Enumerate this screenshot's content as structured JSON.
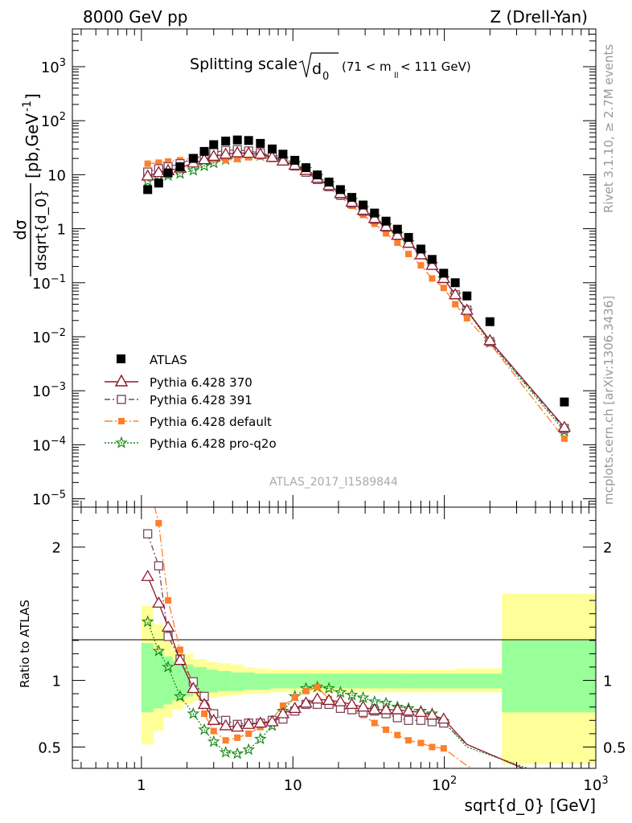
{
  "header": {
    "left": "8000 GeV pp",
    "right": "Z (Drell-Yan)"
  },
  "title": {
    "main": "Splitting scale",
    "symbol": "d",
    "symbol_sub": "0",
    "range_pre": "(71 < m",
    "range_sub": "ll",
    "range_post": " < 111 GeV)"
  },
  "ylabel": {
    "frac_num": "dσ",
    "frac_den": "dsqrt{d_0}",
    "units": "[pb,GeV",
    "units_sup": "-1",
    "units_close": "]"
  },
  "ratio_ylabel": "Ratio to ATLAS",
  "xlabel": "sqrt{d_0} [GeV]",
  "side_labels": {
    "rivet": "Rivet 3.1.10, ≥ 2.7M events",
    "mcplots": "mcplots.cern.ch [arXiv:1306.3436]"
  },
  "analysis_id": "ATLAS_2017_I1589844",
  "colors": {
    "atlas": "#000000",
    "p370": "#8b1a2e",
    "p391": "#7a4a5e",
    "pdefault": "#ff7f2a",
    "pq2o": "#1a8a1a",
    "band_inner": "#99ff99",
    "band_outer": "#ffff99"
  },
  "chart_data": {
    "type": "scatter",
    "x_scale": "log",
    "y_scale": "log",
    "xlim": [
      0.35,
      1000
    ],
    "ylim": [
      7e-06,
      5000
    ],
    "ratio_ylim": [
      0.34,
      2.3
    ],
    "xticks": [
      {
        "v": 1,
        "t": "1"
      },
      {
        "v": 10,
        "t": "10"
      },
      {
        "v": 100,
        "b": "10",
        "s": "2"
      },
      {
        "v": 1000,
        "b": "10",
        "s": "3"
      }
    ],
    "yticks": [
      {
        "v": 1e-05,
        "b": "10",
        "s": "−5"
      },
      {
        "v": 0.0001,
        "b": "10",
        "s": "−4"
      },
      {
        "v": 0.001,
        "b": "10",
        "s": "−3"
      },
      {
        "v": 0.01,
        "b": "10",
        "s": "−2"
      },
      {
        "v": 0.1,
        "b": "10",
        "s": "−1"
      },
      {
        "v": 1,
        "t": "1"
      },
      {
        "v": 10,
        "t": "10"
      },
      {
        "v": 100,
        "b": "10",
        "s": "2"
      },
      {
        "v": 1000,
        "b": "10",
        "s": "3"
      }
    ],
    "ratio_yticks": [
      {
        "v": 0.5,
        "t": "0.5"
      },
      {
        "v": 1,
        "t": "1"
      },
      {
        "v": 2,
        "t": "2"
      }
    ],
    "x": [
      1.1,
      1.3,
      1.5,
      1.8,
      2.2,
      2.6,
      3.0,
      3.6,
      4.3,
      5.1,
      6.1,
      7.3,
      8.6,
      10.3,
      12.2,
      14.5,
      17.3,
      20.6,
      24.5,
      29.1,
      34.6,
      41.2,
      49,
      58,
      70,
      83,
      99,
      118,
      141,
      200,
      620
    ],
    "series": [
      {
        "name": "ATLAS",
        "marker": "square",
        "values": [
          5.3,
          7,
          10.8,
          14,
          20,
          27,
          36,
          42,
          44,
          43,
          38,
          30,
          24,
          18.5,
          13.5,
          9.9,
          7.3,
          5.3,
          3.8,
          2.75,
          1.95,
          1.38,
          0.98,
          0.69,
          0.42,
          0.27,
          0.15,
          0.1,
          0.057,
          0.019,
          0.00062
        ]
      },
      {
        "name": "Pythia 6.428 370",
        "marker": "triangle",
        "line": "solid",
        "values": [
          9.5,
          11,
          12,
          13.3,
          16.5,
          19,
          22,
          24,
          25.5,
          25,
          24,
          21,
          18,
          15,
          12,
          8.6,
          6.3,
          4.5,
          3.1,
          2.2,
          1.55,
          1.1,
          0.76,
          0.54,
          0.33,
          0.21,
          0.12,
          0.06,
          0.031,
          0.0085,
          0.00021
        ]
      },
      {
        "name": "Pythia 6.428 391",
        "marker": "open-square",
        "line": "dashdot",
        "values": [
          11.2,
          12.9,
          14,
          16,
          20,
          23,
          26,
          28,
          29,
          27.5,
          25.5,
          21.3,
          18,
          14.5,
          11.1,
          8.15,
          6,
          4.2,
          2.95,
          2.1,
          1.49,
          1.07,
          0.76,
          0.54,
          0.33,
          0.21,
          0.12,
          0.06,
          0.031,
          0.0081,
          0.0002
        ]
      },
      {
        "name": "Pythia 6.428 default",
        "marker": "small-square",
        "line": "dashdot-long",
        "values": [
          16,
          16.7,
          17.5,
          18.5,
          20.5,
          19.5,
          19.5,
          18.5,
          19.5,
          21,
          21.5,
          19.5,
          17,
          13.8,
          10.6,
          7.8,
          5.7,
          3.9,
          2.65,
          1.8,
          1.23,
          0.82,
          0.55,
          0.34,
          0.21,
          0.12,
          0.08,
          0.04,
          0.022,
          0.0075,
          0.00013
        ]
      },
      {
        "name": "Pythia 6.428 pro-q2o",
        "marker": "star",
        "line": "dotted",
        "values": [
          7.6,
          8.7,
          9.6,
          10.5,
          12,
          14.5,
          16.5,
          19,
          21,
          23,
          22.5,
          21,
          19.5,
          16.5,
          12.7,
          9.4,
          6.9,
          4.8,
          3.4,
          2.4,
          1.65,
          1.15,
          0.8,
          0.56,
          0.35,
          0.22,
          0.12,
          0.06,
          0.03,
          0.0078,
          0.00018
        ]
      }
    ],
    "ratio": [
      {
        "name": "Pythia 6.428 370",
        "values": [
          1.78,
          1.58,
          1.4,
          1.15,
          0.94,
          0.82,
          0.7,
          0.66,
          0.65,
          0.67,
          0.68,
          0.69,
          0.75,
          0.79,
          0.83,
          0.86,
          0.85,
          0.84,
          0.82,
          0.8,
          0.78,
          0.78,
          0.78,
          0.77,
          0.76,
          0.74,
          0.71
        ],
        "tail": [
          [
            141,
            0.52
          ],
          [
            400,
            0.3
          ]
        ]
      },
      {
        "name": "Pythia 6.428 391",
        "values": [
          2.1,
          1.86,
          1.33,
          1.16,
          0.99,
          0.88,
          0.75,
          0.7,
          0.67,
          0.68,
          0.68,
          0.7,
          0.71,
          0.77,
          0.82,
          0.82,
          0.82,
          0.79,
          0.78,
          0.76,
          0.77,
          0.75,
          0.72,
          0.7,
          0.7,
          0.69,
          0.68
        ],
        "tail": [
          [
            141,
            0.52
          ],
          [
            400,
            0.3
          ]
        ]
      },
      {
        "name": "Pythia 6.428 default",
        "values": [
          2.52,
          2.18,
          1.6,
          1.23,
          0.97,
          0.75,
          0.62,
          0.55,
          0.57,
          0.6,
          0.65,
          0.71,
          0.81,
          0.87,
          0.92,
          0.95,
          0.86,
          0.81,
          0.77,
          0.74,
          0.68,
          0.63,
          0.59,
          0.55,
          0.53,
          0.5,
          0.49
        ],
        "tail": [
          [
            141,
            0.36
          ],
          [
            200,
            0.28
          ]
        ]
      },
      {
        "name": "Pythia 6.428 pro-q2o",
        "values": [
          1.44,
          1.22,
          1.1,
          0.88,
          0.75,
          0.63,
          0.54,
          0.46,
          0.45,
          0.48,
          0.56,
          0.66,
          0.77,
          0.88,
          0.94,
          0.95,
          0.94,
          0.91,
          0.89,
          0.87,
          0.84,
          0.83,
          0.8,
          0.79,
          0.77,
          0.75,
          0.69
        ],
        "tail": [
          [
            141,
            0.5
          ],
          [
            400,
            0.32
          ]
        ]
      }
    ],
    "band_edges": [
      1,
      1.2,
      1.4,
      1.6,
      1.9,
      2.2,
      2.7,
      3.2,
      3.9,
      4.7,
      5.6,
      7,
      9,
      12,
      16,
      22,
      30,
      40,
      55,
      80,
      120,
      240,
      1000
    ],
    "band_inner": [
      [
        0.76,
        1.28
      ],
      [
        0.79,
        1.22
      ],
      [
        0.82,
        1.18
      ],
      [
        0.85,
        1.15
      ],
      [
        0.88,
        1.12
      ],
      [
        0.9,
        1.1
      ],
      [
        0.91,
        1.08
      ],
      [
        0.92,
        1.07
      ],
      [
        0.92,
        1.06
      ],
      [
        0.93,
        1.06
      ],
      [
        0.93,
        1.05
      ],
      [
        0.94,
        1.05
      ],
      [
        0.94,
        1.05
      ],
      [
        0.94,
        1.05
      ],
      [
        0.94,
        1.05
      ],
      [
        0.94,
        1.05
      ],
      [
        0.94,
        1.05
      ],
      [
        0.94,
        1.05
      ],
      [
        0.94,
        1.05
      ],
      [
        0.94,
        1.05
      ],
      [
        0.94,
        1.05
      ],
      [
        0.76,
        1.3
      ]
    ],
    "band_outer": [
      [
        0.52,
        1.56
      ],
      [
        0.62,
        1.42
      ],
      [
        0.72,
        1.33
      ],
      [
        0.78,
        1.24
      ],
      [
        0.82,
        1.2
      ],
      [
        0.85,
        1.16
      ],
      [
        0.87,
        1.14
      ],
      [
        0.88,
        1.13
      ],
      [
        0.89,
        1.12
      ],
      [
        0.9,
        1.1
      ],
      [
        0.9,
        1.09
      ],
      [
        0.91,
        1.08
      ],
      [
        0.91,
        1.08
      ],
      [
        0.91,
        1.08
      ],
      [
        0.91,
        1.08
      ],
      [
        0.91,
        1.08
      ],
      [
        0.91,
        1.08
      ],
      [
        0.91,
        1.08
      ],
      [
        0.91,
        1.08
      ],
      [
        0.91,
        1.08
      ],
      [
        0.91,
        1.09
      ],
      [
        0.37,
        1.65
      ]
    ]
  }
}
